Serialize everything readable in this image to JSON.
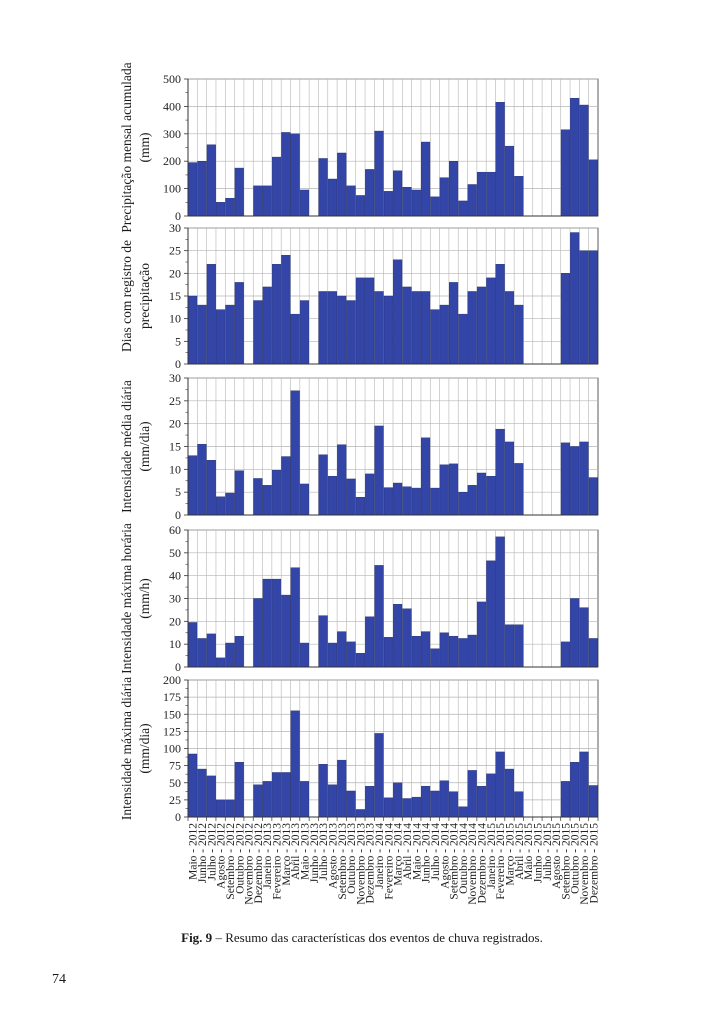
{
  "page_number": "74",
  "caption": {
    "label": "Fig. 9",
    "text": " – Resumo das características dos eventos de chuva registrados."
  },
  "colors": {
    "bar": "#3346a8",
    "bar_edge": "#1d2a6e",
    "grid": "#b5b5b5",
    "axis": "#333333"
  },
  "months": [
    "Maio - 2012",
    "Junho - 2012",
    "Julho - 2012",
    "Agosto - 2012",
    "Setembro - 2012",
    "Outubro - 2012",
    "Novembro - 2012",
    "Dezembro - 2012",
    "Janeiro - 2013",
    "Fevereiro - 2013",
    "Março - 2013",
    "Abril - 2013",
    "Maio - 2013",
    "Junho - 2013",
    "Julho - 2013",
    "Agosto - 2013",
    "Setembro - 2013",
    "Outubro - 2013",
    "Novembro - 2013",
    "Dezembro - 2013",
    "Janeiro - 2014",
    "Fevereiro - 2014",
    "Março - 2014",
    "Abril - 2014",
    "Maio - 2014",
    "Junho - 2014",
    "Julho - 2014",
    "Agosto - 2014",
    "Setembro - 2014",
    "Outubro - 2014",
    "Novembro - 2014",
    "Dezembro - 2014",
    "Janeiro - 2015",
    "Fevereiro - 2015",
    "Março - 2015",
    "Abril - 2015",
    "Maio - 2015",
    "Junho - 2015",
    "Julho - 2015",
    "Agosto - 2015",
    "Setembro - 2015",
    "Outubro - 2015",
    "Novembro - 2015",
    "Dezembro - 2015"
  ],
  "chart_data": [
    {
      "type": "bar",
      "ylabel": [
        "Precipitação mensal acumulada",
        "(mm)"
      ],
      "ylim": [
        0,
        500
      ],
      "yticks": [
        0,
        100,
        200,
        300,
        400,
        500
      ],
      "grid": true,
      "values": [
        195,
        200,
        260,
        50,
        65,
        175,
        null,
        110,
        110,
        215,
        305,
        300,
        95,
        null,
        210,
        135,
        230,
        110,
        75,
        170,
        310,
        90,
        165,
        105,
        95,
        270,
        70,
        140,
        200,
        55,
        115,
        160,
        160,
        415,
        255,
        145,
        null,
        null,
        null,
        null,
        315,
        430,
        405,
        205
      ]
    },
    {
      "type": "bar",
      "ylabel": [
        "Dias com registro de",
        "precipitação"
      ],
      "ylim": [
        0,
        30
      ],
      "yticks": [
        0,
        5,
        10,
        15,
        20,
        25,
        30
      ],
      "grid": true,
      "values": [
        15,
        13,
        22,
        12,
        13,
        18,
        null,
        14,
        17,
        22,
        24,
        11,
        14,
        null,
        16,
        16,
        15,
        14,
        19,
        19,
        16,
        15,
        23,
        17,
        16,
        16,
        12,
        13,
        18,
        11,
        16,
        17,
        19,
        22,
        16,
        13,
        null,
        null,
        null,
        null,
        20,
        29,
        25,
        25
      ]
    },
    {
      "type": "bar",
      "ylabel": [
        "Intensidade média diária",
        "(mm/dia)"
      ],
      "ylim": [
        0,
        30
      ],
      "yticks": [
        0,
        5,
        10,
        15,
        20,
        25,
        30
      ],
      "grid": true,
      "values": [
        13,
        15.5,
        12,
        4,
        4.8,
        9.7,
        null,
        8,
        6.5,
        9.8,
        12.8,
        27.2,
        6.8,
        null,
        13.2,
        8.5,
        15.4,
        7.9,
        3.9,
        9,
        19.5,
        6,
        7,
        6.2,
        5.9,
        16.9,
        5.9,
        11,
        11.2,
        5,
        6.5,
        9.2,
        8.5,
        18.8,
        16,
        11.3,
        null,
        null,
        null,
        null,
        15.8,
        15,
        16,
        8.2
      ]
    },
    {
      "type": "bar",
      "ylabel": [
        "Intensidade máxima horária",
        "(mm/h)"
      ],
      "ylim": [
        0,
        60
      ],
      "yticks": [
        0,
        10,
        20,
        30,
        40,
        50,
        60
      ],
      "grid": true,
      "values": [
        19.5,
        12.5,
        14.5,
        4,
        10.5,
        13.5,
        null,
        30,
        38.5,
        38.5,
        31.5,
        43.5,
        10.5,
        null,
        22.5,
        10.5,
        15.5,
        11,
        6,
        22,
        44.5,
        13,
        27.5,
        25.5,
        13.5,
        15.5,
        8,
        15,
        13.5,
        12.5,
        14,
        28.5,
        46.5,
        57,
        18.5,
        18.5,
        null,
        null,
        null,
        null,
        11,
        30,
        26,
        12.5
      ]
    },
    {
      "type": "bar",
      "ylabel": [
        "Intensidade máxima diária",
        "(mm/dia)"
      ],
      "ylim": [
        0,
        200
      ],
      "yticks": [
        0,
        25,
        50,
        75,
        100,
        125,
        150,
        175,
        200
      ],
      "grid": true,
      "values": [
        92,
        70,
        60,
        25,
        25,
        80,
        null,
        47,
        52,
        65,
        65,
        155,
        52,
        null,
        77,
        47,
        83,
        38,
        11,
        45,
        122,
        28,
        50,
        27,
        29,
        45,
        38,
        53,
        37,
        15,
        68,
        45,
        63,
        95,
        70,
        37,
        null,
        null,
        null,
        null,
        52,
        80,
        95,
        46
      ]
    }
  ]
}
